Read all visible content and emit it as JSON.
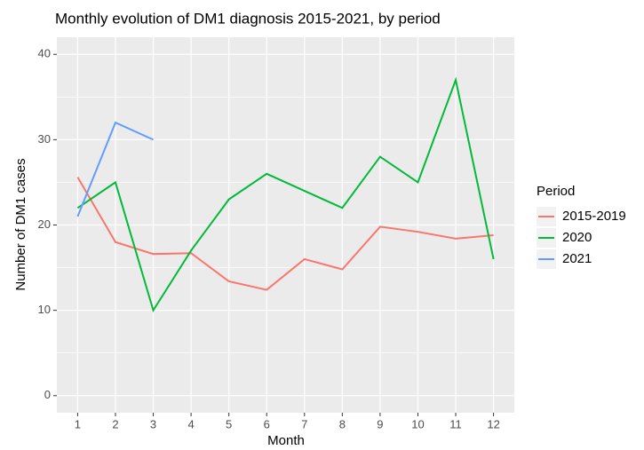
{
  "chart_data": {
    "type": "line",
    "title": "Monthly evolution of DM1 diagnosis 2015-2021, by period",
    "x_label": "Month",
    "y_label": "Number of DM1 cases",
    "legend_title": "Period",
    "legend_position": "right",
    "x": [
      1,
      2,
      3,
      4,
      5,
      6,
      7,
      8,
      9,
      10,
      11,
      12
    ],
    "series": [
      {
        "name": "2015-2019",
        "color": "#F8766D",
        "values": [
          25.6,
          18,
          16.6,
          16.7,
          13.4,
          12.4,
          16,
          14.8,
          19.8,
          19.2,
          18.4,
          18.8
        ]
      },
      {
        "name": "2020",
        "color": "#00BA38",
        "values": [
          22,
          25,
          10,
          17,
          23,
          26,
          24,
          22,
          28,
          25,
          37,
          16
        ]
      },
      {
        "name": "2021",
        "color": "#619CFF",
        "values": [
          21,
          32,
          30,
          null,
          null,
          null,
          null,
          null,
          null,
          null,
          null,
          null
        ]
      }
    ],
    "xlim": [
      0.45,
      12.55
    ],
    "xticks": [
      1,
      2,
      3,
      4,
      5,
      6,
      7,
      8,
      9,
      10,
      11,
      12
    ],
    "ylim": [
      -2,
      42
    ],
    "yticks": [
      0,
      10,
      20,
      30,
      40
    ],
    "yminorticks": [
      5,
      15,
      25,
      35
    ],
    "grid": true
  }
}
